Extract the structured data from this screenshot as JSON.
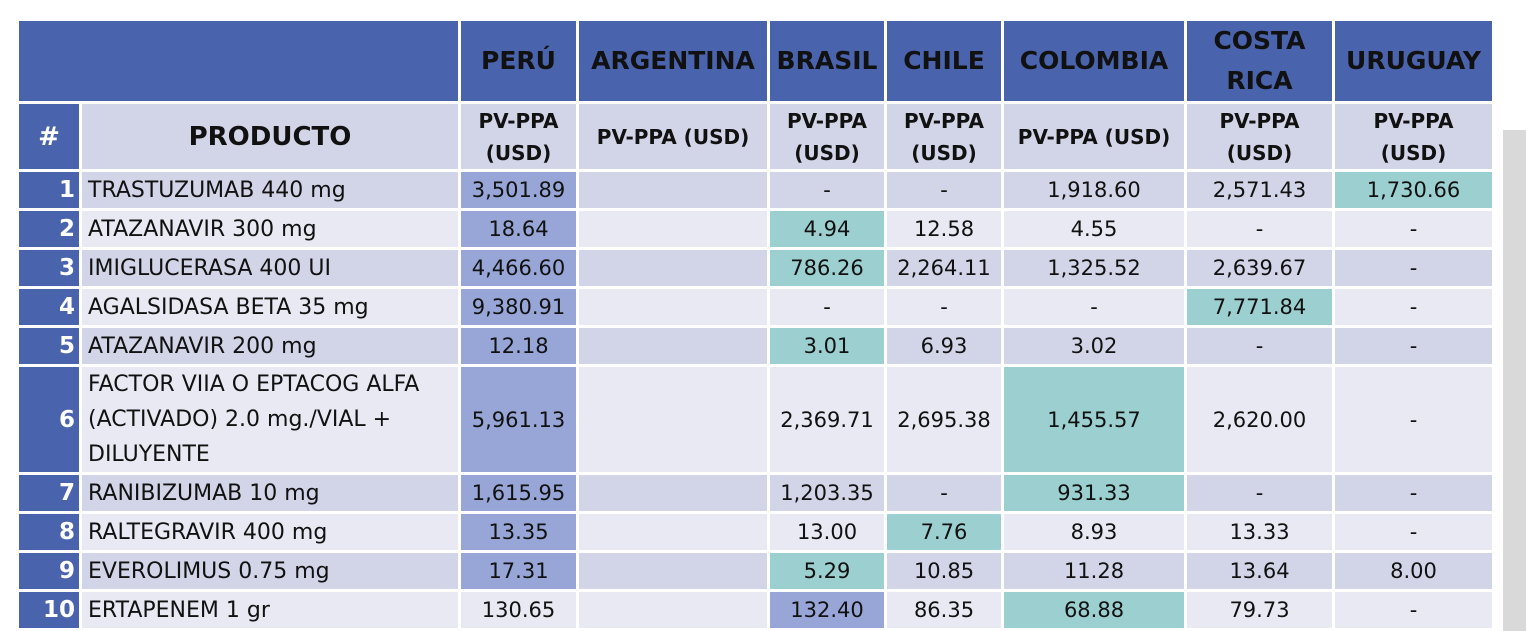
{
  "table": {
    "countries": [
      "PERÚ",
      "ARGENTINA",
      "BRASIL",
      "CHILE",
      "COLOMBIA",
      "COSTA RICA",
      "URUGUAY"
    ],
    "number_header": "#",
    "product_header": "PRODUCTO",
    "price_headers": [
      "PV-PPA (USD)",
      "PV-PPA (USD)",
      "PV-PPA (USD)",
      "PV-PPA (USD)",
      "PV-PPA (USD)",
      "PV-PPA (USD)",
      "PV-PPA (USD)"
    ],
    "highlight_colors": {
      "header": "#4a63ad",
      "blue": "#97a6d6",
      "teal": "#9ccfd0"
    },
    "rows": [
      {
        "n": "1",
        "product": "TRASTUZUMAB 440 mg",
        "values": [
          "3,501.89",
          "",
          "-",
          "-",
          "1,918.60",
          "2,571.43",
          "1,730.66"
        ],
        "highlight": [
          "blue",
          "",
          "",
          "",
          "",
          "",
          "teal"
        ]
      },
      {
        "n": "2",
        "product": "ATAZANAVIR 300 mg",
        "values": [
          "18.64",
          "",
          "4.94",
          "12.58",
          "4.55",
          "-",
          "-"
        ],
        "highlight": [
          "blue",
          "",
          "teal",
          "",
          "",
          "",
          ""
        ]
      },
      {
        "n": "3",
        "product": "IMIGLUCERASA 400 UI",
        "values": [
          "4,466.60",
          "",
          "786.26",
          "2,264.11",
          "1,325.52",
          "2,639.67",
          "-"
        ],
        "highlight": [
          "blue",
          "",
          "teal",
          "",
          "",
          "",
          ""
        ]
      },
      {
        "n": "4",
        "product": "AGALSIDASA BETA 35 mg",
        "values": [
          "9,380.91",
          "",
          "-",
          "-",
          "-",
          "7,771.84",
          "-"
        ],
        "highlight": [
          "blue",
          "",
          "",
          "",
          "",
          "teal",
          ""
        ]
      },
      {
        "n": "5",
        "product": "ATAZANAVIR 200 mg",
        "values": [
          "12.18",
          "",
          "3.01",
          "6.93",
          "3.02",
          "-",
          "-"
        ],
        "highlight": [
          "blue",
          "",
          "teal",
          "",
          "",
          "",
          ""
        ]
      },
      {
        "n": "6",
        "product": "FACTOR VIIA O EPTACOG ALFA (ACTIVADO) 2.0 mg./VIAL + DILUYENTE",
        "values": [
          "5,961.13",
          "",
          "2,369.71",
          "2,695.38",
          "1,455.57",
          "2,620.00",
          "-"
        ],
        "highlight": [
          "blue",
          "",
          "",
          "",
          "teal",
          "",
          ""
        ]
      },
      {
        "n": "7",
        "product": "RANIBIZUMAB 10 mg",
        "values": [
          "1,615.95",
          "",
          "1,203.35",
          "-",
          "931.33",
          "-",
          "-"
        ],
        "highlight": [
          "blue",
          "",
          "",
          "",
          "teal",
          "",
          ""
        ]
      },
      {
        "n": "8",
        "product": "RALTEGRAVIR 400 mg",
        "values": [
          "13.35",
          "",
          "13.00",
          "7.76",
          "8.93",
          "13.33",
          "-"
        ],
        "highlight": [
          "blue",
          "",
          "",
          "teal",
          "",
          "",
          ""
        ]
      },
      {
        "n": "9",
        "product": "EVEROLIMUS 0.75 mg",
        "values": [
          "17.31",
          "",
          "5.29",
          "10.85",
          "11.28",
          "13.64",
          "8.00"
        ],
        "highlight": [
          "blue",
          "",
          "teal",
          "",
          "",
          "",
          ""
        ]
      },
      {
        "n": "10",
        "product": "ERTAPENEM 1 gr",
        "values": [
          "130.65",
          "",
          "132.40",
          "86.35",
          "68.88",
          "79.73",
          "-"
        ],
        "highlight": [
          "",
          "",
          "blue",
          "",
          "teal",
          "",
          ""
        ]
      }
    ]
  }
}
